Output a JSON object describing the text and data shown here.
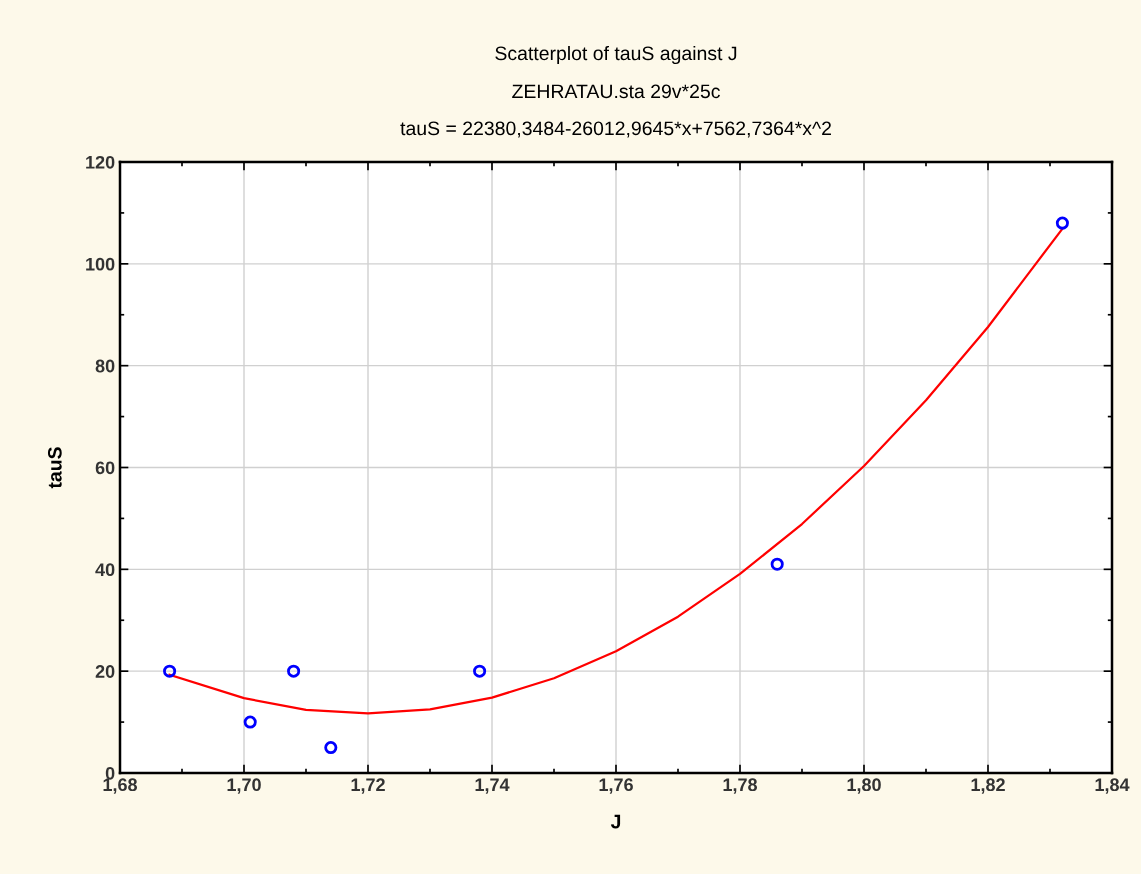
{
  "chart_data": {
    "type": "scatter",
    "title": "Scatterplot of tauS against J",
    "subtitle": "ZEHRATAU.sta 29v*25c",
    "annotations": [
      "tauS = 22380,3484-26012,9645*x+7562,7364*x^2"
    ],
    "xlabel": "J",
    "ylabel": "tauS",
    "x": [
      1.688,
      1.701,
      1.708,
      1.714,
      1.738,
      1.786,
      1.832
    ],
    "series": [
      {
        "color": "#0000ff",
        "marker": "circle",
        "values": [
          20,
          10,
          20,
          5,
          20,
          41,
          108
        ]
      },
      {
        "type": "line",
        "color": "#ff0000",
        "marker": "none",
        "x": [
          1.688,
          1.7,
          1.71,
          1.72,
          1.73,
          1.74,
          1.75,
          1.76,
          1.77,
          1.78,
          1.79,
          1.8,
          1.81,
          1.82,
          1.832
        ],
        "values": [
          19.3,
          14.7,
          12.4,
          11.7,
          12.5,
          14.8,
          18.6,
          23.9,
          30.7,
          39.1,
          48.9,
          60.3,
          73.2,
          87.6,
          106.9
        ]
      }
    ],
    "xlim": [
      1.68,
      1.84
    ],
    "xticks": [
      {
        "value": 1.68,
        "label": "1,68"
      },
      {
        "value": 1.7,
        "label": "1,70"
      },
      {
        "value": 1.72,
        "label": "1,72"
      },
      {
        "value": 1.74,
        "label": "1,74"
      },
      {
        "value": 1.76,
        "label": "1,76"
      },
      {
        "value": 1.78,
        "label": "1,78"
      },
      {
        "value": 1.8,
        "label": "1,80"
      },
      {
        "value": 1.82,
        "label": "1,82"
      },
      {
        "value": 1.84,
        "label": "1,84"
      }
    ],
    "ylim": [
      0,
      120
    ],
    "yticks": [
      0,
      20,
      40,
      60,
      80,
      100,
      120
    ],
    "grid": true
  }
}
